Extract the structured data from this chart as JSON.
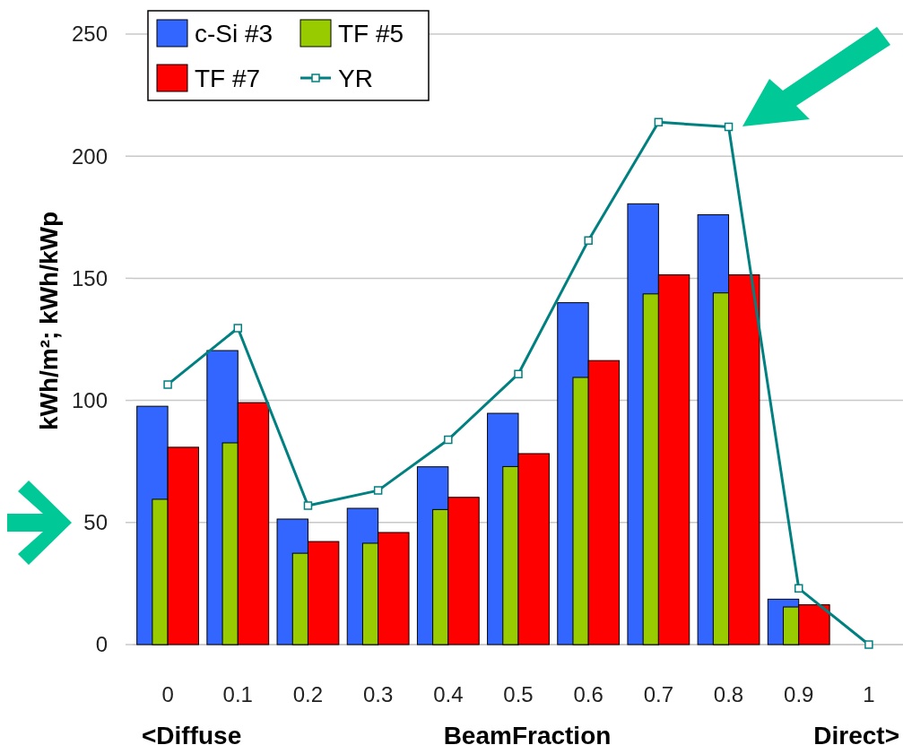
{
  "chart_data": {
    "type": "bar",
    "ylabel": "kWh/m²; kWh/kWp",
    "xlabel": "BeamFraction",
    "annotations": [
      "<Diffuse",
      "Direct>"
    ],
    "categories": [
      "0",
      "0.1",
      "0.2",
      "0.3",
      "0.4",
      "0.5",
      "0.6",
      "0.7",
      "0.8",
      "0.9",
      "1"
    ],
    "series": [
      {
        "name": "c-Si #3",
        "color": "#3366ff",
        "values": [
          97.6,
          120.4,
          51.4,
          55.8,
          72.8,
          94.7,
          140,
          180.5,
          176,
          18.6,
          null
        ]
      },
      {
        "name": "TF #5",
        "color": "#99cc00",
        "values": [
          59.5,
          82.6,
          37.4,
          41.5,
          55.3,
          72.9,
          109.4,
          143.6,
          144,
          15.4,
          null
        ]
      },
      {
        "name": "TF #7",
        "color": "#ff0000",
        "values": [
          80.8,
          99.1,
          42.2,
          45.9,
          60.3,
          78.2,
          116.3,
          151.4,
          151.4,
          16.3,
          null
        ]
      },
      {
        "name": "YR",
        "type": "line",
        "color": "#008080",
        "marker": "square",
        "values": [
          106.5,
          129.6,
          56.9,
          63.1,
          83.9,
          110.8,
          165.5,
          213.9,
          212,
          23,
          0
        ]
      }
    ],
    "ylim": [
      0,
      250
    ],
    "yticks": [
      0,
      50,
      100,
      150,
      200,
      250
    ],
    "grid": "y",
    "legend": "top left"
  }
}
